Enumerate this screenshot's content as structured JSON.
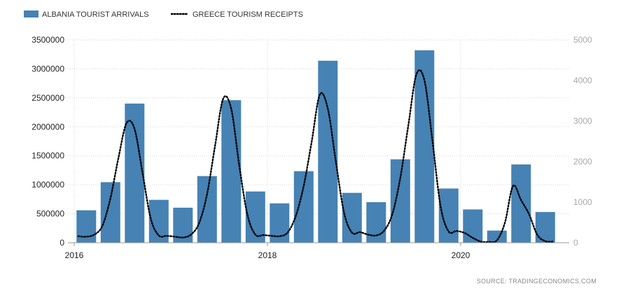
{
  "chart_data": {
    "type": "bar",
    "source": "SOURCE:  TRADINGECONOMICS.COM",
    "x_ticks": [
      "2016",
      "2018",
      "2020"
    ],
    "y_left": {
      "ylim": [
        0,
        3500000
      ],
      "ticks": [
        "0",
        "500000",
        "1000000",
        "1500000",
        "2000000",
        "2500000",
        "3000000",
        "3500000"
      ]
    },
    "y_right": {
      "ylim": [
        0,
        5000
      ],
      "ticks": [
        "0",
        "1000",
        "2000",
        "3000",
        "4000",
        "5000"
      ]
    },
    "grid": true,
    "legend_position": "top-left",
    "series": [
      {
        "name": "ALBANIA TOURIST ARRIVALS",
        "type": "bar",
        "axis": "left",
        "color": "#4682b4",
        "x": [
          "2016-Q1",
          "2016-Q2",
          "2016-Q3",
          "2016-Q4",
          "2017-Q1",
          "2017-Q2",
          "2017-Q3",
          "2017-Q4",
          "2018-Q1",
          "2018-Q2",
          "2018-Q3",
          "2018-Q4",
          "2019-Q1",
          "2019-Q2",
          "2019-Q3",
          "2019-Q4",
          "2020-Q1",
          "2020-Q2",
          "2020-Q3",
          "2020-Q4"
        ],
        "values": [
          560000,
          1045000,
          2400000,
          740000,
          605000,
          1150000,
          2460000,
          885000,
          680000,
          1235000,
          3140000,
          860000,
          700000,
          1440000,
          3320000,
          935000,
          575000,
          210000,
          1350000,
          530000
        ]
      },
      {
        "name": "GREECE TOURISM RECEIPTS",
        "type": "line",
        "style": "dotted",
        "axis": "right",
        "color": "#000000",
        "x": [
          "2016-01",
          "2016-02",
          "2016-03",
          "2016-04",
          "2016-05",
          "2016-06",
          "2016-07",
          "2016-08",
          "2016-09",
          "2016-10",
          "2016-11",
          "2016-12",
          "2017-01",
          "2017-02",
          "2017-03",
          "2017-04",
          "2017-05",
          "2017-06",
          "2017-07",
          "2017-08",
          "2017-09",
          "2017-10",
          "2017-11",
          "2017-12",
          "2018-01",
          "2018-02",
          "2018-03",
          "2018-04",
          "2018-05",
          "2018-06",
          "2018-07",
          "2018-08",
          "2018-09",
          "2018-10",
          "2018-11",
          "2018-12",
          "2019-01",
          "2019-02",
          "2019-03",
          "2019-04",
          "2019-05",
          "2019-06",
          "2019-07",
          "2019-08",
          "2019-09",
          "2019-10",
          "2019-11",
          "2019-12",
          "2020-01",
          "2020-02",
          "2020-03",
          "2020-04",
          "2020-05",
          "2020-06",
          "2020-07",
          "2020-08",
          "2020-09",
          "2020-10",
          "2020-11",
          "2020-12"
        ],
        "values": [
          160,
          150,
          200,
          420,
          1100,
          2100,
          2950,
          2800,
          1700,
          600,
          180,
          170,
          150,
          130,
          200,
          480,
          1200,
          2400,
          3550,
          3300,
          1900,
          700,
          200,
          190,
          170,
          160,
          250,
          650,
          1400,
          2500,
          3650,
          3300,
          2000,
          750,
          250,
          260,
          200,
          180,
          300,
          700,
          1600,
          2900,
          4150,
          4000,
          2500,
          900,
          280,
          290,
          240,
          120,
          30,
          20,
          60,
          500,
          1400,
          1050,
          700,
          200,
          40,
          30
        ]
      }
    ]
  }
}
